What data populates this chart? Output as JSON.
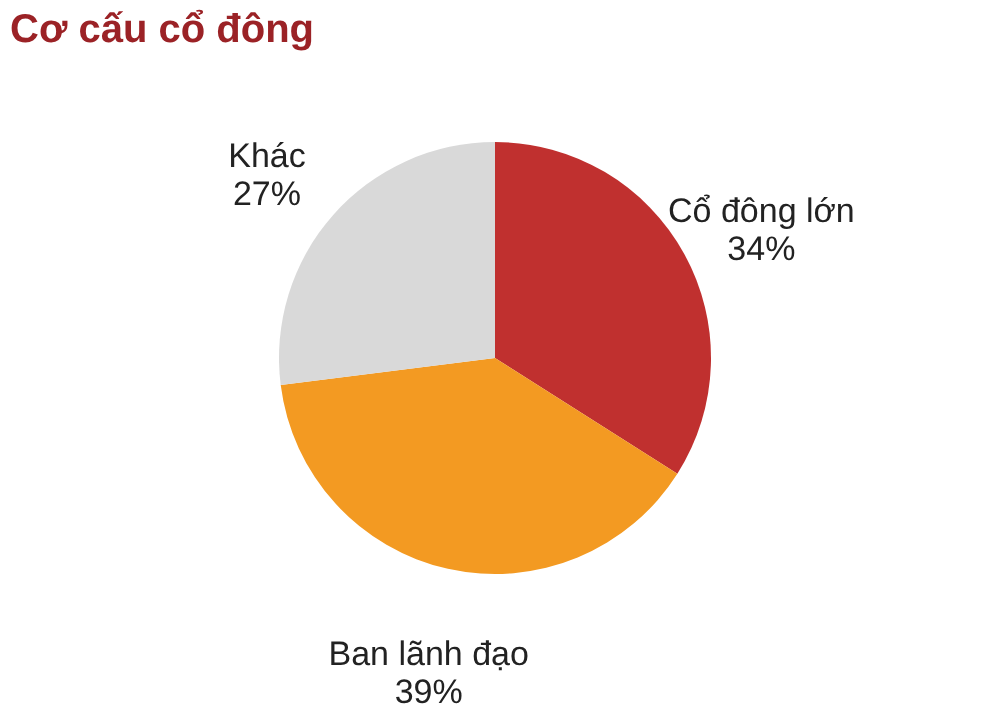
{
  "chart_data": {
    "type": "pie",
    "title": "Cơ cấu cổ đông",
    "categories": [
      "Cổ đông lớn",
      "Ban lãnh đạo",
      "Khác"
    ],
    "values": [
      34,
      39,
      27
    ],
    "value_labels": [
      "34%",
      "39%",
      "27%"
    ],
    "colors": [
      "#c0302f",
      "#f39a22",
      "#d9d9d9"
    ],
    "legend": false
  }
}
